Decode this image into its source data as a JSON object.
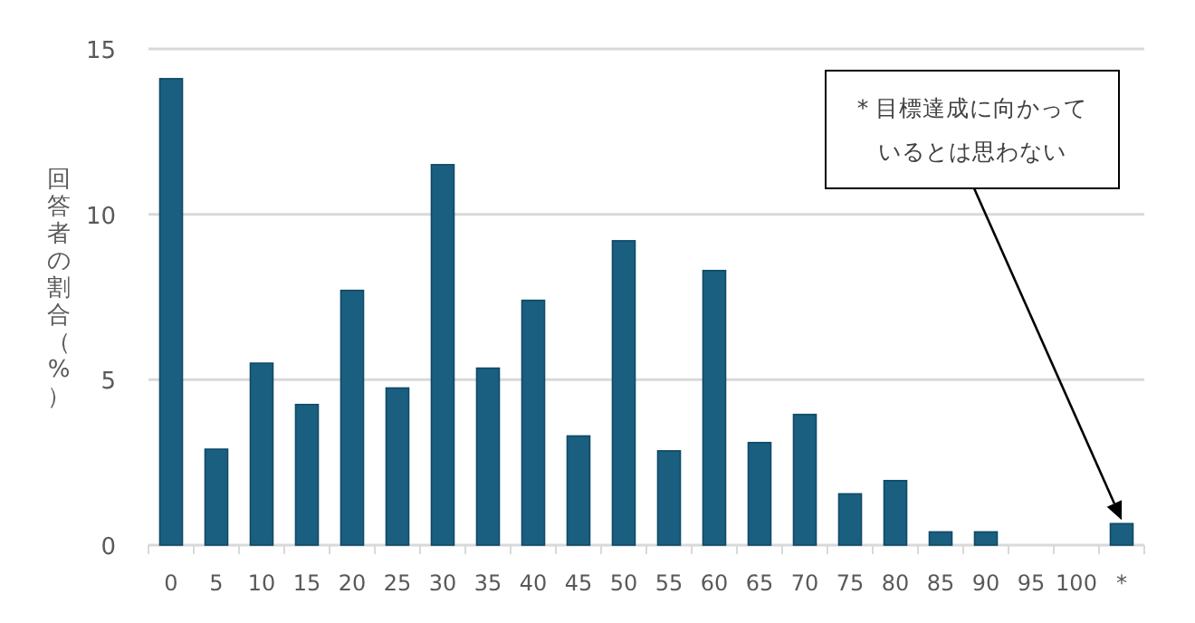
{
  "chart_data": {
    "type": "bar",
    "ylabel": "回答者の割合（%）",
    "categories": [
      "0",
      "5",
      "10",
      "15",
      "20",
      "25",
      "30",
      "35",
      "40",
      "45",
      "50",
      "55",
      "60",
      "65",
      "70",
      "75",
      "80",
      "85",
      "90",
      "95",
      "100",
      "*"
    ],
    "values": [
      14.1,
      2.9,
      5.5,
      4.25,
      7.7,
      4.75,
      11.5,
      5.35,
      7.4,
      3.3,
      9.2,
      2.85,
      8.3,
      3.1,
      3.95,
      1.55,
      1.95,
      0.4,
      0.4,
      0,
      0,
      0.65
    ],
    "color": "#1a5e80",
    "ylim": [
      0,
      15
    ],
    "yticks": [
      0,
      5,
      10,
      15
    ],
    "grid": "y",
    "annotations": [
      "* 目標達成に向かっているとは思わない"
    ]
  }
}
